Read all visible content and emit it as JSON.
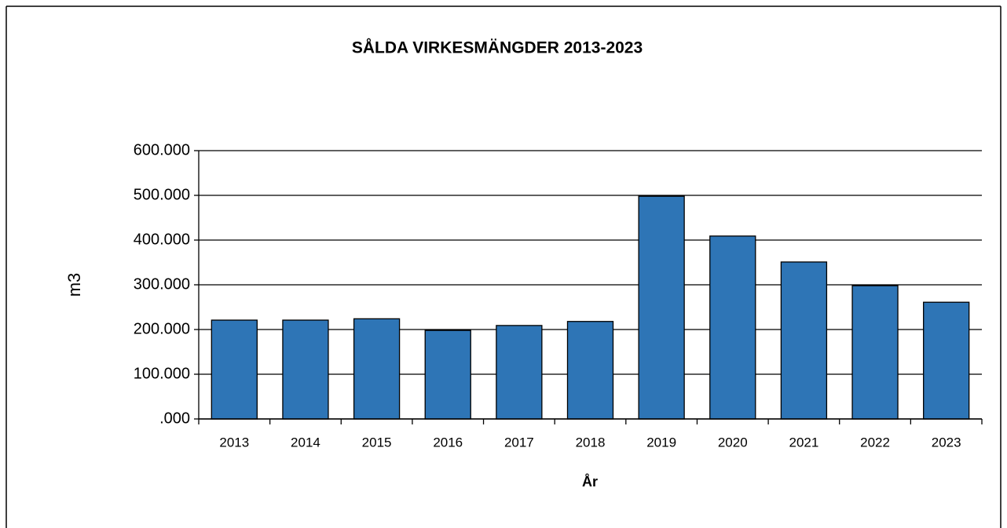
{
  "chart_data": {
    "type": "bar",
    "title": "SÅLDA VIRKESMÄNGDER 2013-2023",
    "x_label": "År",
    "y_label": "m3",
    "categories": [
      "2013",
      "2014",
      "2015",
      "2016",
      "2017",
      "2018",
      "2019",
      "2020",
      "2021",
      "2022",
      "2023"
    ],
    "values": [
      221000,
      221000,
      224000,
      198000,
      209000,
      218000,
      498000,
      409000,
      351000,
      298000,
      261000
    ],
    "color": "#2e75b6",
    "ylim": [
      0,
      600000
    ],
    "yticks": [
      {
        "value": 0,
        "label": ".000"
      },
      {
        "value": 100000,
        "label": "100.000"
      },
      {
        "value": 200000,
        "label": "200.000"
      },
      {
        "value": 300000,
        "label": "300.000"
      },
      {
        "value": 400000,
        "label": "400.000"
      },
      {
        "value": 500000,
        "label": "500.000"
      },
      {
        "value": 600000,
        "label": "600.000"
      }
    ],
    "grid": true
  }
}
